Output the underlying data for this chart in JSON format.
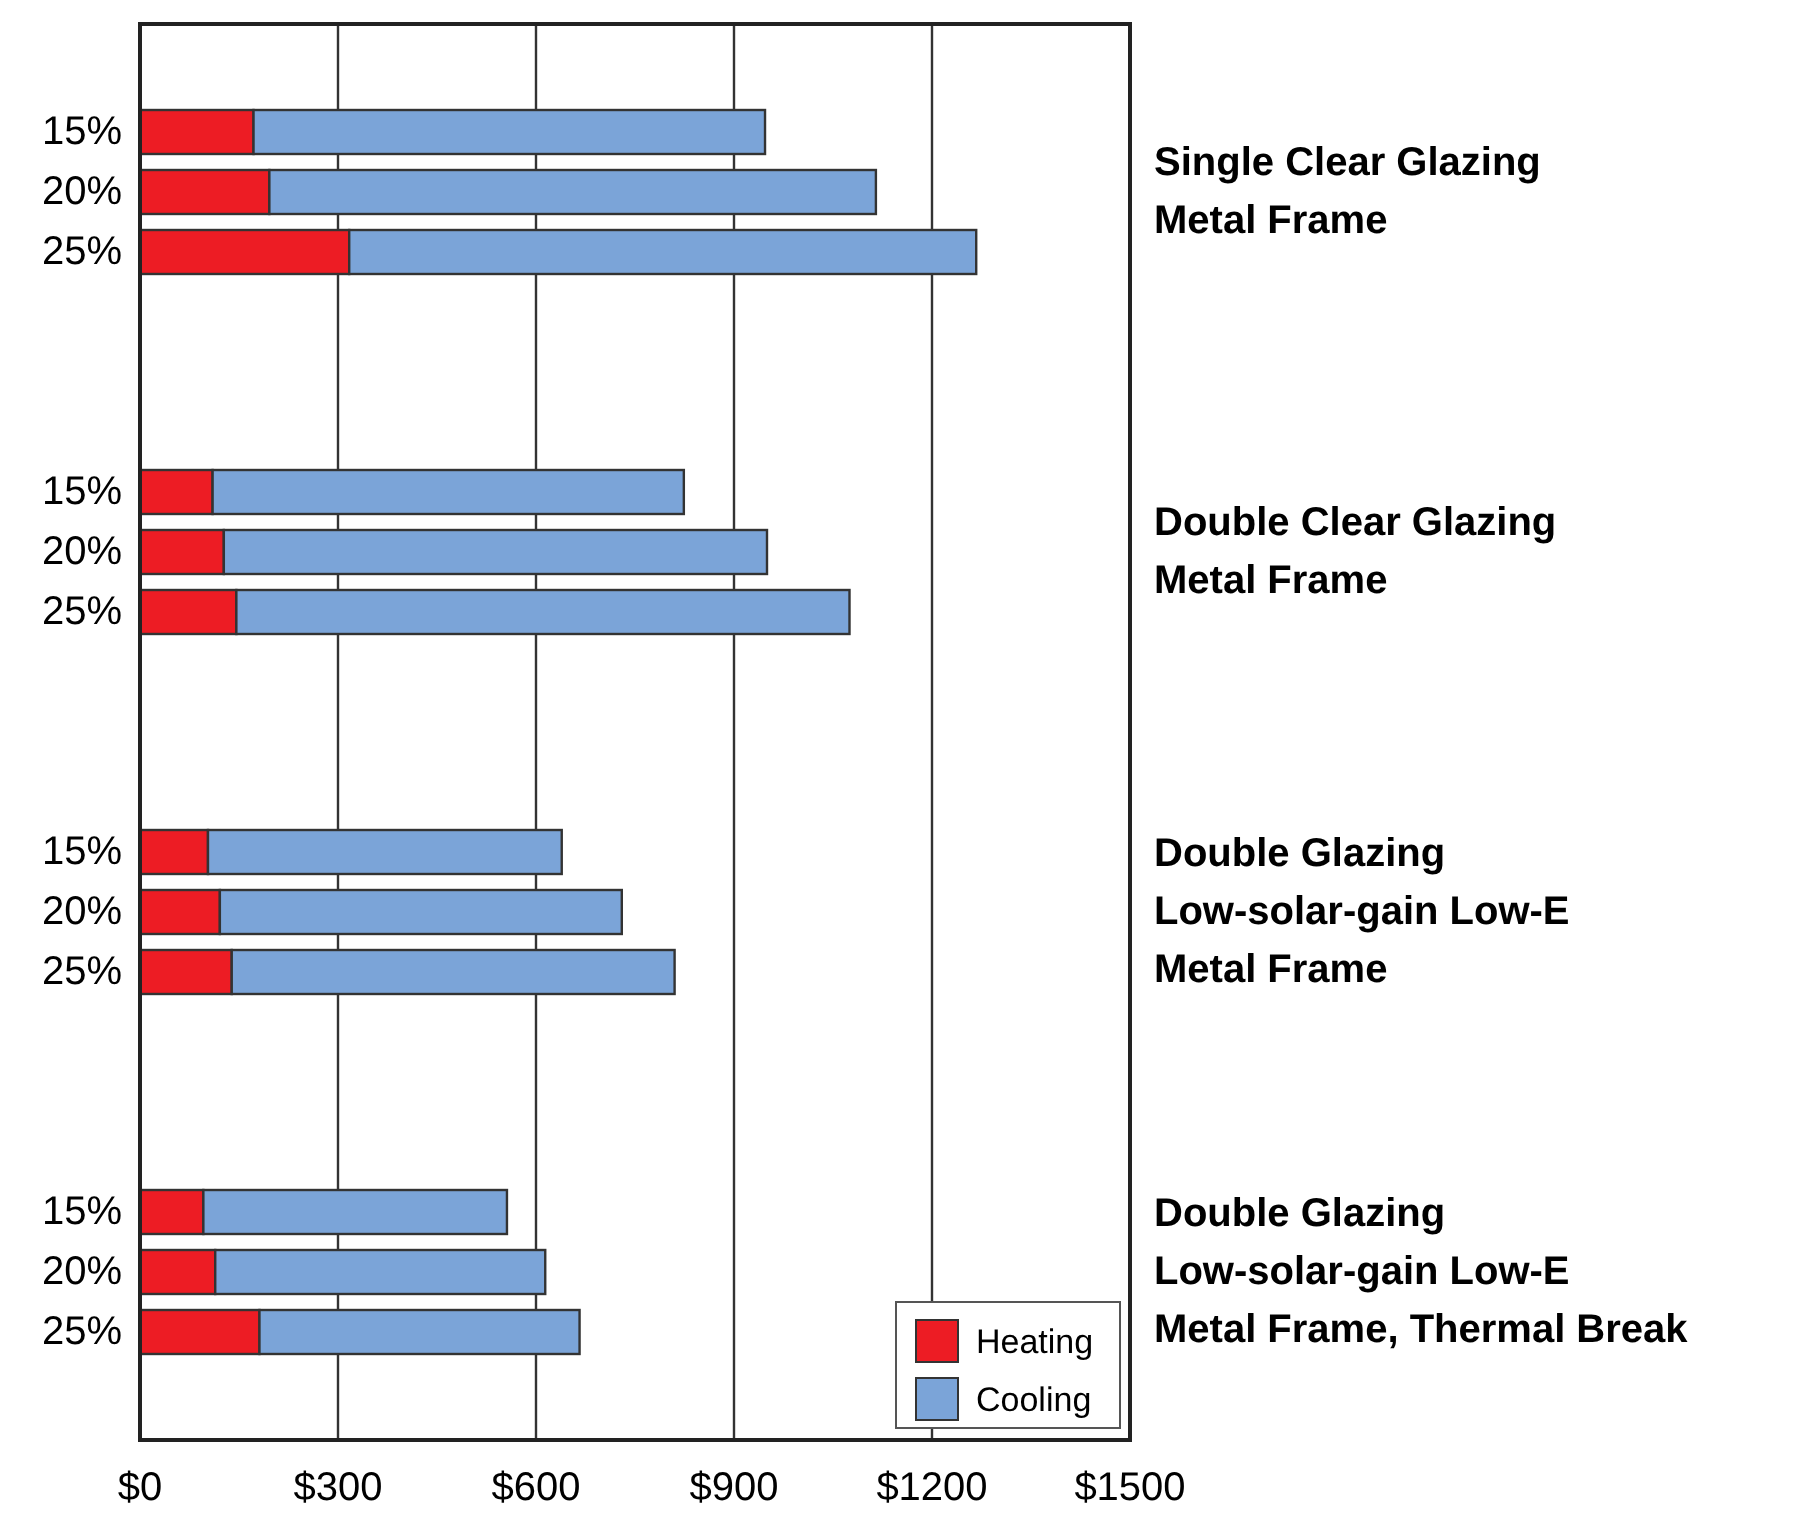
{
  "chart_data": {
    "type": "bar",
    "orientation": "horizontal",
    "stacked": true,
    "categories": [
      "15%",
      "20%",
      "25%",
      null,
      null,
      null,
      "15%",
      "20%",
      "25%",
      null,
      null,
      null,
      "15%",
      "20%",
      "25%",
      null,
      null,
      null,
      "15%",
      "20%",
      "25%"
    ],
    "series": [
      {
        "name": "Heating",
        "color": "#ed1c24",
        "values": [
          172,
          196,
          317,
          null,
          null,
          null,
          110,
          127,
          146,
          null,
          null,
          null,
          103,
          121,
          139,
          null,
          null,
          null,
          96,
          114,
          181
        ]
      },
      {
        "name": "Cooling",
        "color": "#7ba4d8",
        "values": [
          775,
          919,
          950,
          null,
          null,
          null,
          714,
          823,
          929,
          null,
          null,
          null,
          536,
          609,
          671,
          null,
          null,
          null,
          460,
          500,
          485
        ]
      }
    ],
    "xlim": [
      0,
      1500
    ],
    "xticks": [
      {
        "value": 0,
        "label": "$0"
      },
      {
        "value": 300,
        "label": "$300"
      },
      {
        "value": 600,
        "label": "$600"
      },
      {
        "value": 900,
        "label": "$900"
      },
      {
        "value": 1200,
        "label": "$1200"
      },
      {
        "value": 1500,
        "label": "$1500"
      }
    ],
    "grid": "x",
    "legend": "bottom right",
    "annotations": [
      "Single Clear Glazing\nMetal Frame",
      "Double Clear Glazing\nMetal Frame",
      "Double Glazing\nLow-solar-gain Low-E\nMetal Frame",
      "Double Glazing\nLow-solar-gain Low-E\nMetal Frame, Thermal Break"
    ]
  }
}
